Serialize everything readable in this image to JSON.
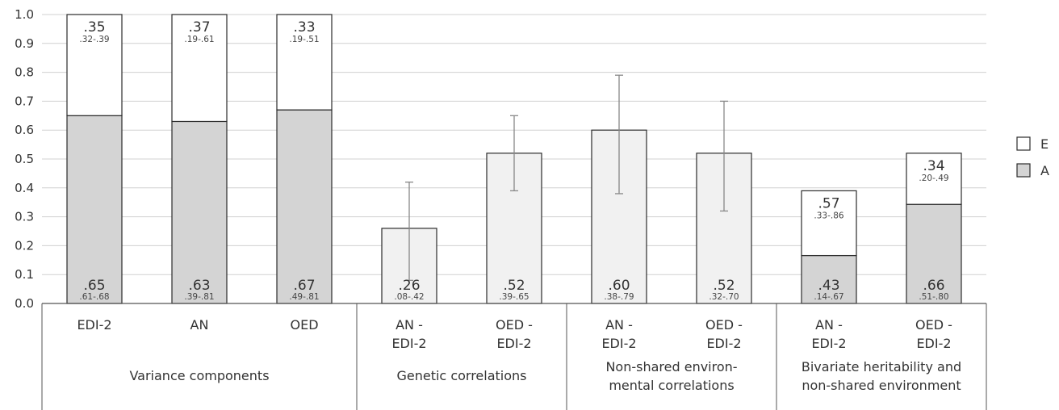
{
  "chart_data": {
    "type": "bar",
    "stacked": true,
    "ylim": [
      0,
      1.0
    ],
    "yticks": [
      "0.0",
      "0.1",
      "0.2",
      "0.3",
      "0.4",
      "0.5",
      "0.6",
      "0.7",
      "0.8",
      "0.9",
      "1.0"
    ],
    "grid": true,
    "legend": {
      "placement": "right",
      "entries": [
        {
          "label": "E",
          "color": "#ffffff"
        },
        {
          "label": "A",
          "color": "#d4d4d4"
        }
      ]
    },
    "colors": {
      "A": "#d4d4d4",
      "E": "#ffffff",
      "corr": "#f1f1f1",
      "errorbar": "#888888"
    },
    "groups": [
      {
        "label_lines": [
          "Variance components"
        ],
        "span": [
          0,
          2
        ]
      },
      {
        "label_lines": [
          "Genetic correlations"
        ],
        "span": [
          3,
          4
        ]
      },
      {
        "label_lines": [
          "Non-shared environ-",
          "mental correlations"
        ],
        "span": [
          5,
          6
        ]
      },
      {
        "label_lines": [
          "Bivariate heritability and",
          "non-shared environment"
        ],
        "span": [
          7,
          8
        ]
      }
    ],
    "bars": [
      {
        "label_lines": [
          "EDI-2"
        ],
        "kind": "stack",
        "a": 0.65,
        "e": 0.35,
        "a_label": ".65",
        "a_ci": ".61-.68",
        "e_label": ".35",
        "e_ci": ".32-.39"
      },
      {
        "label_lines": [
          "AN"
        ],
        "kind": "stack",
        "a": 0.63,
        "e": 0.37,
        "a_label": ".63",
        "a_ci": ".39-.81",
        "e_label": ".37",
        "e_ci": ".19-.61"
      },
      {
        "label_lines": [
          "OED"
        ],
        "kind": "stack",
        "a": 0.67,
        "e": 0.33,
        "a_label": ".67",
        "a_ci": ".49-.81",
        "e_label": ".33",
        "e_ci": ".19-.51"
      },
      {
        "label_lines": [
          "AN -",
          "EDI-2"
        ],
        "kind": "corr",
        "value": 0.26,
        "ci_low": 0.08,
        "ci_high": 0.42,
        "label": ".26",
        "ci": ".08-.42"
      },
      {
        "label_lines": [
          "OED -",
          "EDI-2"
        ],
        "kind": "corr",
        "value": 0.52,
        "ci_low": 0.39,
        "ci_high": 0.65,
        "label": ".52",
        "ci": ".39-.65"
      },
      {
        "label_lines": [
          "AN -",
          "EDI-2"
        ],
        "kind": "corr",
        "value": 0.6,
        "ci_low": 0.38,
        "ci_high": 0.79,
        "label": ".60",
        "ci": ".38-.79"
      },
      {
        "label_lines": [
          "OED -",
          "EDI-2"
        ],
        "kind": "corr",
        "value": 0.52,
        "ci_low": 0.32,
        "ci_high": 0.7,
        "label": ".52",
        "ci": ".32-.70"
      },
      {
        "label_lines": [
          "AN -",
          "EDI-2"
        ],
        "kind": "stack",
        "total": 0.39,
        "a": 0.166,
        "e": 0.224,
        "a_label": ".43",
        "a_ci": ".14-.67",
        "e_label": ".57",
        "e_ci": ".33-.86"
      },
      {
        "label_lines": [
          "OED -",
          "EDI-2"
        ],
        "kind": "stack",
        "total": 0.52,
        "a": 0.343,
        "e": 0.177,
        "a_label": ".66",
        "a_ci": ".51-.80",
        "e_label": ".34",
        "e_ci": ".20-.49"
      }
    ]
  }
}
